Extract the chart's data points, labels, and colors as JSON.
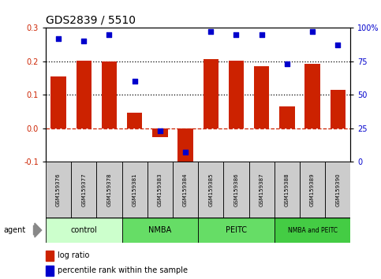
{
  "title": "GDS2839 / 5510",
  "samples": [
    "GSM159376",
    "GSM159377",
    "GSM159378",
    "GSM159381",
    "GSM159383",
    "GSM159384",
    "GSM159385",
    "GSM159386",
    "GSM159387",
    "GSM159388",
    "GSM159389",
    "GSM159390"
  ],
  "log_ratio": [
    0.155,
    0.202,
    0.2,
    0.047,
    -0.027,
    -0.105,
    0.207,
    0.203,
    0.185,
    0.065,
    0.192,
    0.114
  ],
  "percentile": [
    92,
    90,
    95,
    60,
    23,
    7,
    97,
    95,
    95,
    73,
    97,
    87
  ],
  "bar_color": "#cc2200",
  "dot_color": "#0000cc",
  "groups": [
    {
      "label": "control",
      "start": 0,
      "end": 3,
      "color": "#ccffcc"
    },
    {
      "label": "NMBA",
      "start": 3,
      "end": 6,
      "color": "#66dd66"
    },
    {
      "label": "PEITC",
      "start": 6,
      "end": 9,
      "color": "#66dd66"
    },
    {
      "label": "NMBA and PEITC",
      "start": 9,
      "end": 12,
      "color": "#44cc44"
    }
  ],
  "ylim_left": [
    -0.1,
    0.3
  ],
  "ylim_right": [
    0,
    100
  ],
  "yticks_left": [
    -0.1,
    0.0,
    0.1,
    0.2,
    0.3
  ],
  "yticks_right": [
    0,
    25,
    50,
    75,
    100
  ],
  "ytick_labels_right": [
    "0",
    "25",
    "50",
    "75",
    "100%"
  ],
  "legend_items": [
    {
      "label": "log ratio",
      "color": "#cc2200"
    },
    {
      "label": "percentile rank within the sample",
      "color": "#0000cc"
    }
  ],
  "agent_label": "agent",
  "bar_width": 0.6,
  "sample_box_color": "#cccccc",
  "title_fontsize": 10,
  "tick_fontsize": 7,
  "sample_fontsize": 5,
  "group_fontsize": 7,
  "legend_fontsize": 7
}
